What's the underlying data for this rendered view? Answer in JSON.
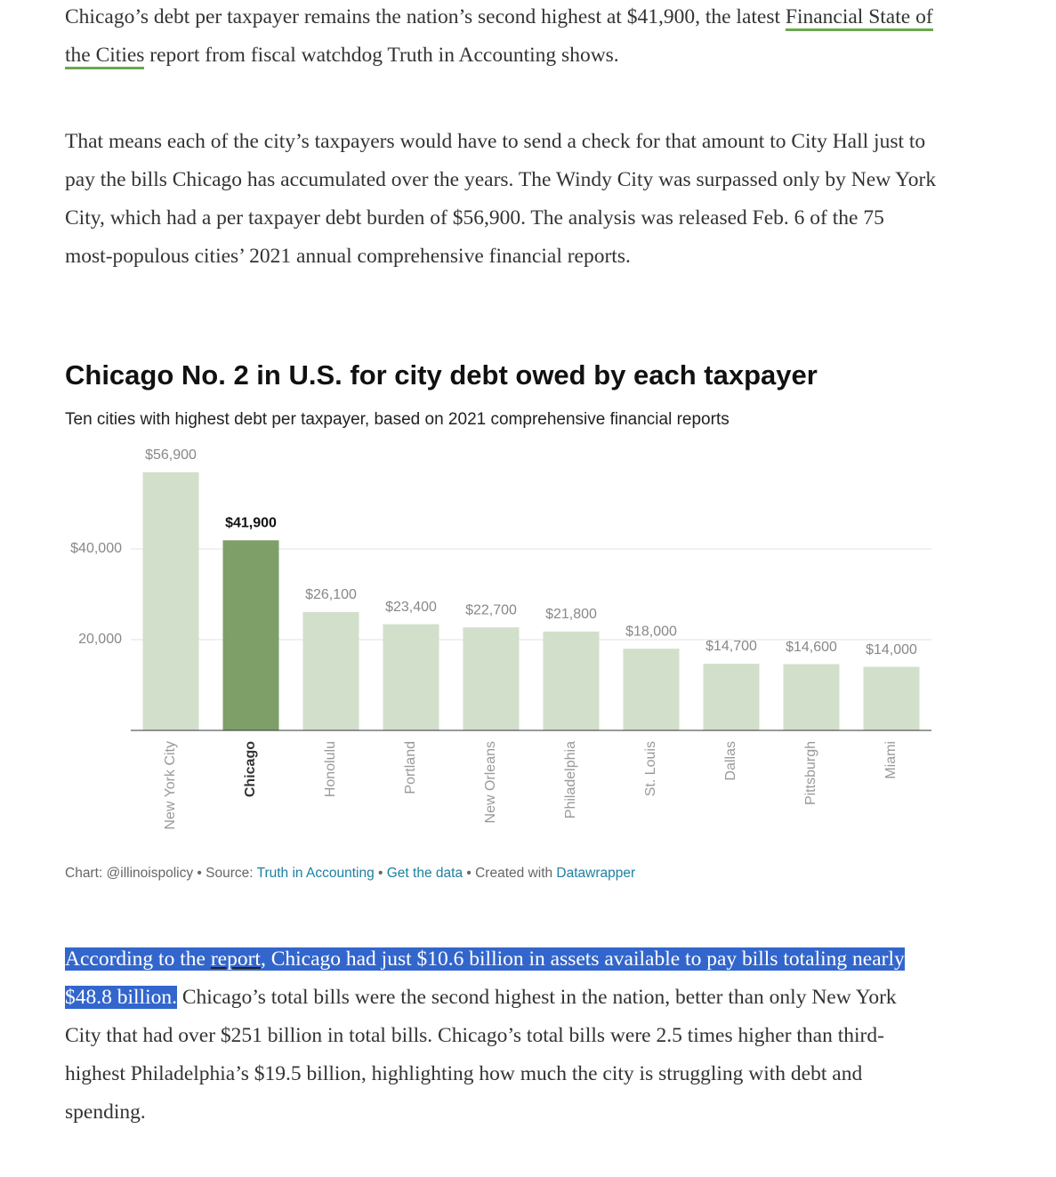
{
  "article": {
    "paragraphs": [
      [
        "Chicago’s debt per taxpayer remains the nation’s second highest at $41,900, the latest ",
        "Financial State of the Cities",
        " report from fiscal watchdog Truth in Accounting shows."
      ],
      [
        "That means each of the city’s taxpayers would have to send a check for that amount to City Hall just to pay the bills Chicago has accumulated over the years. The Windy City was surpassed only by New York City, which had a per taxpayer debt burden of $56,900. The analysis was released Feb. 6 of the 75 most-populous cities’ 2021 annual comprehensive financial reports."
      ],
      [
        "According to the ",
        "report",
        ", Chicago had just $10.6 billion in assets available to pay bills totaling nearly $48.8 billion.",
        " Chicago’s total bills were the second highest in the nation, better than only New York City that had over $251 billion in total bills. Chicago’s total bills were 2.5 times higher than third-highest Philadelphia’s $19.5 billion, highlighting how much the city is struggling with debt and spending."
      ]
    ],
    "chart_footer": [
      "Chart: @illinoispolicy • Source: ",
      "Truth in Accounting",
      " • ",
      "Get the data",
      " • Created with ",
      "Datawrapper"
    ]
  },
  "chart_data": {
    "type": "bar",
    "title": "Chicago No. 2 in U.S. for city debt owed by each taxpayer",
    "subtitle": "Ten cities with highest debt per taxpayer, based on 2021 comprehensive financial reports",
    "categories": [
      "New York City",
      "Chicago",
      "Honolulu",
      "Portland",
      "New Orleans",
      "Philadelphia",
      "St. Louis",
      "Dallas",
      "Pittsburgh",
      "Miami"
    ],
    "values": [
      56900,
      41900,
      26100,
      23400,
      22700,
      21800,
      18000,
      14700,
      14600,
      14000
    ],
    "value_labels": [
      "$56,900",
      "$41,900",
      "$26,100",
      "$23,400",
      "$22,700",
      "$21,800",
      "$18,000",
      "$14,700",
      "$14,600",
      "$14,000"
    ],
    "colors": [
      "#d2dfca",
      "#7f9f68",
      "#d2dfca",
      "#d2dfca",
      "#d2dfca",
      "#d2dfca",
      "#d2dfca",
      "#d2dfca",
      "#d2dfca",
      "#d2dfca"
    ],
    "ylim": [
      0,
      60000
    ],
    "yticks": [
      {
        "value": 20000,
        "label": "20,000"
      },
      {
        "value": 40000,
        "label": "$40,000"
      }
    ],
    "grid": true
  }
}
